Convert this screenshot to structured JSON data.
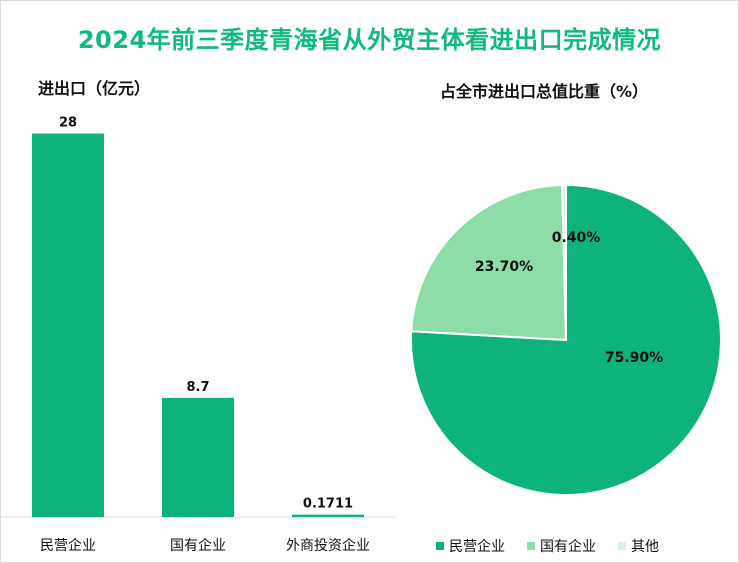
{
  "title": "2024年前三季度青海省从外贸主体看进出口完成情况",
  "colors": {
    "title": "#10b981",
    "primary": "#0db27d",
    "secondary": "#8edca7",
    "tertiary": "#d4f1e0"
  },
  "chart_data": [
    {
      "type": "bar",
      "title": "进出口（亿元）",
      "categories": [
        "民营企业",
        "国有企业",
        "外商投资企业"
      ],
      "values": [
        28,
        8.7,
        0.1711
      ],
      "value_labels": [
        "28",
        "8.7",
        "0.1711"
      ],
      "ylim": [
        0,
        29.5
      ],
      "grid": false,
      "xlabel": "",
      "ylabel": ""
    },
    {
      "type": "pie",
      "title": "占全市进出口总值比重（%）",
      "categories": [
        "民营企业",
        "国有企业",
        "其他"
      ],
      "values": [
        75.9,
        23.7,
        0.4
      ],
      "value_labels": [
        "75.90%",
        "23.70%",
        "0.40%"
      ],
      "legend": "bottom"
    }
  ]
}
